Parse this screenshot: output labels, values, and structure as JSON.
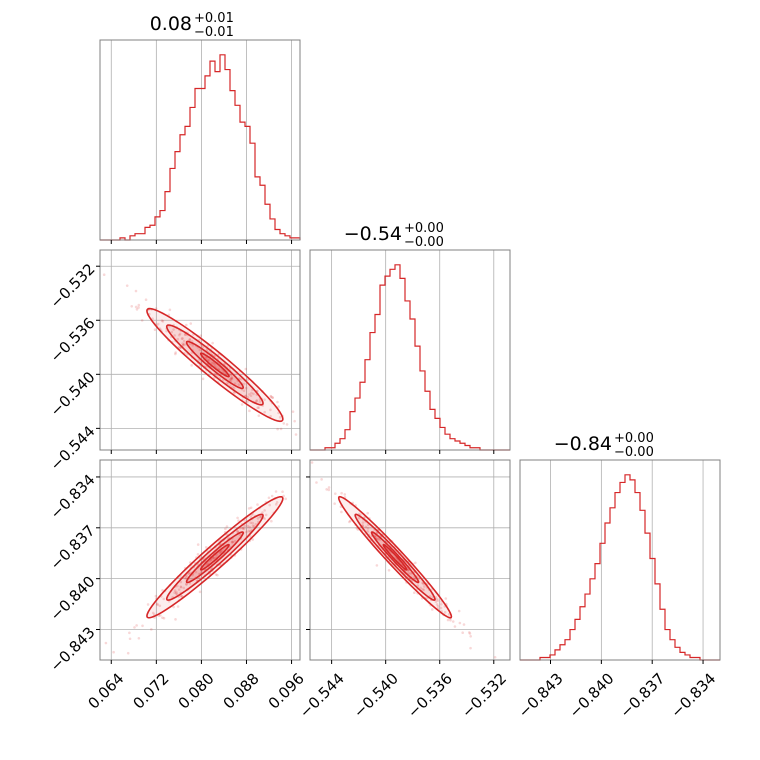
{
  "chart_data": {
    "type": "corner",
    "color": "#d62728",
    "grid": true,
    "parameters": [
      {
        "title": {
          "value": "0.08",
          "plus": "+0.01",
          "minus": "−0.01"
        },
        "range": [
          0.062,
          0.0975
        ],
        "ticks": [
          0.064,
          0.072,
          0.08,
          0.088,
          0.096
        ],
        "tick_labels": [
          "0.064",
          "0.072",
          "0.080",
          "0.088",
          "0.096"
        ],
        "histogram": [
          0,
          0,
          0,
          0,
          1,
          0,
          2,
          3,
          3,
          6,
          7,
          11,
          14,
          23,
          34,
          42,
          50,
          54,
          63,
          72,
          72,
          78,
          85,
          80,
          88,
          81,
          71,
          64,
          56,
          54,
          46,
          30,
          26,
          17,
          10,
          5,
          3,
          2,
          1,
          1
        ]
      },
      {
        "title": {
          "value": "−0.54",
          "plus": "+0.00",
          "minus": "−0.00"
        },
        "range": [
          -0.5456,
          -0.5308
        ],
        "ticks": [
          -0.532,
          -0.536,
          -0.54,
          -0.544
        ],
        "tick_labels": [
          "−0.532",
          "−0.536",
          "−0.540",
          "−0.544"
        ],
        "histogram": [
          0,
          0,
          0,
          1,
          1,
          3,
          5,
          9,
          17,
          23,
          30,
          40,
          52,
          60,
          73,
          77,
          80,
          82,
          76,
          66,
          58,
          46,
          35,
          26,
          18,
          14,
          10,
          7,
          5,
          4,
          3,
          2,
          1,
          1,
          0,
          0,
          0,
          0,
          0,
          0
        ]
      },
      {
        "title": {
          "value": "−0.84",
          "plus": "+0.00",
          "minus": "−0.00"
        },
        "range": [
          -0.8448,
          -0.833
        ],
        "ticks": [
          -0.834,
          -0.837,
          -0.84,
          -0.843
        ],
        "tick_labels": [
          "−0.834",
          "−0.837",
          "−0.840",
          "−0.843"
        ],
        "histogram": [
          0,
          0,
          0,
          0,
          1,
          1,
          2,
          4,
          6,
          8,
          12,
          16,
          21,
          26,
          32,
          38,
          46,
          54,
          60,
          66,
          70,
          73,
          71,
          66,
          59,
          50,
          40,
          30,
          20,
          12,
          8,
          5,
          3,
          2,
          1,
          1,
          0,
          0,
          0,
          0
        ]
      }
    ],
    "pairs": [
      {
        "x_param": 0,
        "y_param": 1,
        "correlation": -0.96
      },
      {
        "x_param": 0,
        "y_param": 2,
        "correlation": 0.97
      },
      {
        "x_param": 1,
        "y_param": 2,
        "correlation": -0.98
      }
    ]
  }
}
